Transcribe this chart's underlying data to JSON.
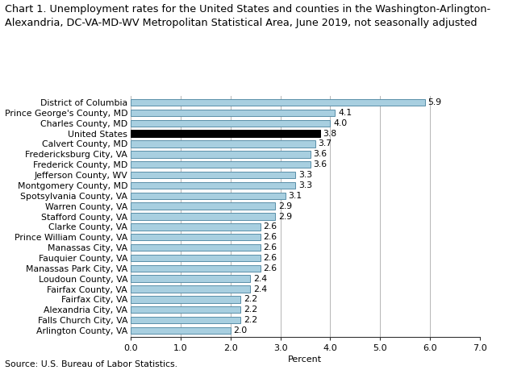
{
  "title_line1": "Chart 1. Unemployment rates for the United States and counties in the Washington-Arlington-",
  "title_line2": "Alexandria, DC-VA-MD-WV Metropolitan Statistical Area, June 2019, not seasonally adjusted",
  "categories": [
    "Arlington County, VA",
    "Falls Church City, VA",
    "Alexandria City, VA",
    "Fairfax City, VA",
    "Fairfax County, VA",
    "Loudoun County, VA",
    "Manassas Park City, VA",
    "Fauquier County, VA",
    "Manassas City, VA",
    "Prince William County, VA",
    "Clarke County, VA",
    "Stafford County, VA",
    "Warren County, VA",
    "Spotsylvania County, VA",
    "Montgomery County, MD",
    "Jefferson County, WV",
    "Frederick County, MD",
    "Fredericksburg City, VA",
    "Calvert County, MD",
    "United States",
    "Charles County, MD",
    "Prince George's County, MD",
    "District of Columbia"
  ],
  "values": [
    2.0,
    2.2,
    2.2,
    2.2,
    2.4,
    2.4,
    2.6,
    2.6,
    2.6,
    2.6,
    2.6,
    2.9,
    2.9,
    3.1,
    3.3,
    3.3,
    3.6,
    3.6,
    3.7,
    3.8,
    4.0,
    4.1,
    5.9
  ],
  "bar_color_light": "#a8cfe0",
  "bar_color_dark": "#000000",
  "bar_edge_color_light": "#5a8fa8",
  "bar_edge_color_dark": "#000000",
  "us_index": 19,
  "xlabel": "Percent",
  "xlim": [
    0.0,
    7.0
  ],
  "xticks": [
    0.0,
    1.0,
    2.0,
    3.0,
    4.0,
    5.0,
    6.0,
    7.0
  ],
  "source": "Source: U.S. Bureau of Labor Statistics.",
  "title_fontsize": 9.2,
  "label_fontsize": 7.8,
  "tick_fontsize": 8.0,
  "value_fontsize": 7.8,
  "grid_color": "#aaaaaa",
  "background_color": "#ffffff"
}
